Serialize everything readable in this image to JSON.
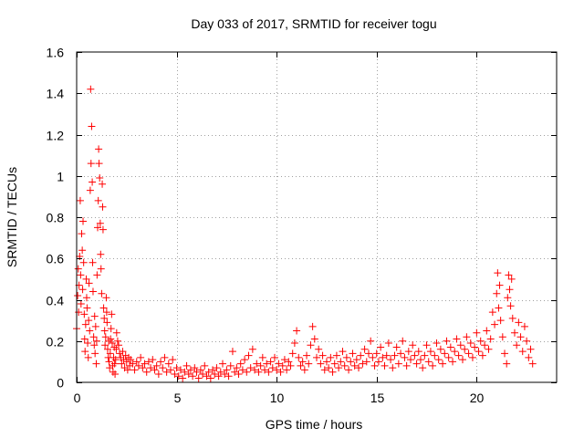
{
  "chart_data": {
    "type": "scatter",
    "title": "Day 033 of 2017, SRMTID for receiver togu",
    "xlabel": "GPS time / hours",
    "ylabel": "SRMTID / TECUs",
    "xlim": [
      0,
      24
    ],
    "ylim": [
      0,
      1.6
    ],
    "xticks": [
      0,
      5,
      10,
      15,
      20
    ],
    "xtick_labels": [
      "0",
      "5",
      "10",
      "15",
      "20"
    ],
    "yticks": [
      0,
      0.2,
      0.4,
      0.6,
      0.8,
      1.0,
      1.2,
      1.4,
      1.6
    ],
    "ytick_labels": [
      "0",
      "0.2",
      "0.4",
      "0.6",
      "0.8",
      "1",
      "1.2",
      "1.4",
      "1.6"
    ],
    "grid": true,
    "marker": "plus",
    "color": "#ff0000",
    "series": [
      {
        "name": "SRMTID",
        "points": [
          [
            0.0,
            0.26
          ],
          [
            0.05,
            0.42
          ],
          [
            0.08,
            0.55
          ],
          [
            0.1,
            0.34
          ],
          [
            0.12,
            0.47
          ],
          [
            0.15,
            0.61
          ],
          [
            0.18,
            0.88
          ],
          [
            0.2,
            0.52
          ],
          [
            0.22,
            0.38
          ],
          [
            0.25,
            0.72
          ],
          [
            0.28,
            0.64
          ],
          [
            0.3,
            0.45
          ],
          [
            0.32,
            0.78
          ],
          [
            0.35,
            0.58
          ],
          [
            0.38,
            0.33
          ],
          [
            0.4,
            0.21
          ],
          [
            0.42,
            0.15
          ],
          [
            0.45,
            0.28
          ],
          [
            0.48,
            0.5
          ],
          [
            0.5,
            0.41
          ],
          [
            0.52,
            0.36
          ],
          [
            0.55,
            0.19
          ],
          [
            0.58,
            0.12
          ],
          [
            0.6,
            0.3
          ],
          [
            0.62,
            0.48
          ],
          [
            0.65,
            0.25
          ],
          [
            0.68,
            0.93
          ],
          [
            0.7,
            1.42
          ],
          [
            0.72,
            1.06
          ],
          [
            0.75,
            1.24
          ],
          [
            0.78,
            0.97
          ],
          [
            0.8,
            0.58
          ],
          [
            0.82,
            0.44
          ],
          [
            0.85,
            0.22
          ],
          [
            0.88,
            0.18
          ],
          [
            0.9,
            0.32
          ],
          [
            0.92,
            0.14
          ],
          [
            0.95,
            0.27
          ],
          [
            0.98,
            0.09
          ],
          [
            1.0,
            0.2
          ],
          [
            1.02,
            0.52
          ],
          [
            1.05,
            0.75
          ],
          [
            1.08,
            0.88
          ],
          [
            1.1,
            1.13
          ],
          [
            1.12,
            1.06
          ],
          [
            1.15,
            0.99
          ],
          [
            1.18,
            0.77
          ],
          [
            1.2,
            0.62
          ],
          [
            1.22,
            0.55
          ],
          [
            1.25,
            0.43
          ],
          [
            1.28,
            0.96
          ],
          [
            1.3,
            0.85
          ],
          [
            1.32,
            0.74
          ],
          [
            1.35,
            0.36
          ],
          [
            1.38,
            0.31
          ],
          [
            1.4,
            0.25
          ],
          [
            1.42,
            0.18
          ],
          [
            1.45,
            0.22
          ],
          [
            1.48,
            0.41
          ],
          [
            1.5,
            0.34
          ],
          [
            1.52,
            0.29
          ],
          [
            1.55,
            0.16
          ],
          [
            1.58,
            0.12
          ],
          [
            1.6,
            0.2
          ],
          [
            1.62,
            0.1
          ],
          [
            1.65,
            0.07
          ],
          [
            1.68,
            0.14
          ],
          [
            1.7,
            0.21
          ],
          [
            1.72,
            0.26
          ],
          [
            1.75,
            0.33
          ],
          [
            1.78,
            0.19
          ],
          [
            1.8,
            0.08
          ],
          [
            1.82,
            0.05
          ],
          [
            1.85,
            0.12
          ],
          [
            1.88,
            0.17
          ],
          [
            1.9,
            0.09
          ],
          [
            1.92,
            0.04
          ],
          [
            1.95,
            0.11
          ],
          [
            1.98,
            0.16
          ],
          [
            2.0,
            0.24
          ],
          [
            2.05,
            0.2
          ],
          [
            2.1,
            0.18
          ],
          [
            2.15,
            0.14
          ],
          [
            2.2,
            0.12
          ],
          [
            2.25,
            0.09
          ],
          [
            2.3,
            0.15
          ],
          [
            2.35,
            0.11
          ],
          [
            2.4,
            0.07
          ],
          [
            2.45,
            0.13
          ],
          [
            2.5,
            0.1
          ],
          [
            2.55,
            0.06
          ],
          [
            2.6,
            0.12
          ],
          [
            2.65,
            0.08
          ],
          [
            2.7,
            0.11
          ],
          [
            2.8,
            0.09
          ],
          [
            2.9,
            0.06
          ],
          [
            3.0,
            0.1
          ],
          [
            3.1,
            0.08
          ],
          [
            3.2,
            0.12
          ],
          [
            3.3,
            0.07
          ],
          [
            3.4,
            0.09
          ],
          [
            3.5,
            0.05
          ],
          [
            3.6,
            0.1
          ],
          [
            3.7,
            0.07
          ],
          [
            3.8,
            0.11
          ],
          [
            3.9,
            0.06
          ],
          [
            4.0,
            0.08
          ],
          [
            4.1,
            0.04
          ],
          [
            4.2,
            0.1
          ],
          [
            4.3,
            0.07
          ],
          [
            4.4,
            0.12
          ],
          [
            4.5,
            0.05
          ],
          [
            4.6,
            0.09
          ],
          [
            4.7,
            0.06
          ],
          [
            4.8,
            0.11
          ],
          [
            4.9,
            0.04
          ],
          [
            5.0,
            0.07
          ],
          [
            5.1,
            0.03
          ],
          [
            5.2,
            0.06
          ],
          [
            5.3,
            0.02
          ],
          [
            5.4,
            0.05
          ],
          [
            5.5,
            0.08
          ],
          [
            5.6,
            0.04
          ],
          [
            5.7,
            0.06
          ],
          [
            5.8,
            0.03
          ],
          [
            5.9,
            0.07
          ],
          [
            6.0,
            0.05
          ],
          [
            6.1,
            0.02
          ],
          [
            6.2,
            0.06
          ],
          [
            6.3,
            0.04
          ],
          [
            6.4,
            0.08
          ],
          [
            6.5,
            0.03
          ],
          [
            6.6,
            0.05
          ],
          [
            6.7,
            0.02
          ],
          [
            6.8,
            0.06
          ],
          [
            6.9,
            0.04
          ],
          [
            7.0,
            0.07
          ],
          [
            7.1,
            0.03
          ],
          [
            7.2,
            0.05
          ],
          [
            7.3,
            0.09
          ],
          [
            7.4,
            0.04
          ],
          [
            7.5,
            0.06
          ],
          [
            7.6,
            0.03
          ],
          [
            7.7,
            0.08
          ],
          [
            7.8,
            0.15
          ],
          [
            7.9,
            0.05
          ],
          [
            8.0,
            0.07
          ],
          [
            8.1,
            0.04
          ],
          [
            8.2,
            0.09
          ],
          [
            8.3,
            0.06
          ],
          [
            8.4,
            0.11
          ],
          [
            8.5,
            0.05
          ],
          [
            8.6,
            0.13
          ],
          [
            8.7,
            0.07
          ],
          [
            8.8,
            0.16
          ],
          [
            8.9,
            0.06
          ],
          [
            9.0,
            0.09
          ],
          [
            9.1,
            0.05
          ],
          [
            9.2,
            0.08
          ],
          [
            9.3,
            0.12
          ],
          [
            9.4,
            0.06
          ],
          [
            9.5,
            0.09
          ],
          [
            9.6,
            0.05
          ],
          [
            9.7,
            0.1
          ],
          [
            9.8,
            0.07
          ],
          [
            9.9,
            0.12
          ],
          [
            10.0,
            0.06
          ],
          [
            10.1,
            0.09
          ],
          [
            10.2,
            0.05
          ],
          [
            10.3,
            0.08
          ],
          [
            10.4,
            0.11
          ],
          [
            10.5,
            0.06
          ],
          [
            10.6,
            0.1
          ],
          [
            10.7,
            0.08
          ],
          [
            10.8,
            0.14
          ],
          [
            10.9,
            0.19
          ],
          [
            11.0,
            0.25
          ],
          [
            11.1,
            0.12
          ],
          [
            11.2,
            0.08
          ],
          [
            11.3,
            0.1
          ],
          [
            11.4,
            0.06
          ],
          [
            11.5,
            0.13
          ],
          [
            11.6,
            0.09
          ],
          [
            11.7,
            0.18
          ],
          [
            11.8,
            0.27
          ],
          [
            11.9,
            0.21
          ],
          [
            12.0,
            0.12
          ],
          [
            12.1,
            0.16
          ],
          [
            12.2,
            0.09
          ],
          [
            12.3,
            0.13
          ],
          [
            12.4,
            0.06
          ],
          [
            12.5,
            0.1
          ],
          [
            12.6,
            0.07
          ],
          [
            12.7,
            0.12
          ],
          [
            12.8,
            0.05
          ],
          [
            12.9,
            0.09
          ],
          [
            13.0,
            0.13
          ],
          [
            13.1,
            0.07
          ],
          [
            13.2,
            0.1
          ],
          [
            13.3,
            0.15
          ],
          [
            13.4,
            0.08
          ],
          [
            13.5,
            0.12
          ],
          [
            13.6,
            0.06
          ],
          [
            13.7,
            0.1
          ],
          [
            13.8,
            0.14
          ],
          [
            13.9,
            0.08
          ],
          [
            14.0,
            0.11
          ],
          [
            14.1,
            0.07
          ],
          [
            14.2,
            0.13
          ],
          [
            14.3,
            0.09
          ],
          [
            14.4,
            0.16
          ],
          [
            14.5,
            0.1
          ],
          [
            14.6,
            0.14
          ],
          [
            14.7,
            0.2
          ],
          [
            14.8,
            0.12
          ],
          [
            14.9,
            0.08
          ],
          [
            15.0,
            0.14
          ],
          [
            15.1,
            0.1
          ],
          [
            15.2,
            0.17
          ],
          [
            15.3,
            0.12
          ],
          [
            15.4,
            0.08
          ],
          [
            15.5,
            0.13
          ],
          [
            15.6,
            0.19
          ],
          [
            15.7,
            0.11
          ],
          [
            15.8,
            0.07
          ],
          [
            15.9,
            0.13
          ],
          [
            16.0,
            0.17
          ],
          [
            16.1,
            0.09
          ],
          [
            16.2,
            0.14
          ],
          [
            16.3,
            0.2
          ],
          [
            16.4,
            0.12
          ],
          [
            16.5,
            0.08
          ],
          [
            16.6,
            0.15
          ],
          [
            16.7,
            0.11
          ],
          [
            16.8,
            0.18
          ],
          [
            16.9,
            0.13
          ],
          [
            17.0,
            0.09
          ],
          [
            17.1,
            0.15
          ],
          [
            17.2,
            0.11
          ],
          [
            17.3,
            0.07
          ],
          [
            17.4,
            0.13
          ],
          [
            17.5,
            0.18
          ],
          [
            17.6,
            0.1
          ],
          [
            17.7,
            0.15
          ],
          [
            17.8,
            0.08
          ],
          [
            17.9,
            0.13
          ],
          [
            18.0,
            0.19
          ],
          [
            18.1,
            0.11
          ],
          [
            18.2,
            0.16
          ],
          [
            18.3,
            0.09
          ],
          [
            18.4,
            0.14
          ],
          [
            18.5,
            0.2
          ],
          [
            18.6,
            0.12
          ],
          [
            18.7,
            0.17
          ],
          [
            18.8,
            0.1
          ],
          [
            18.9,
            0.15
          ],
          [
            19.0,
            0.21
          ],
          [
            19.1,
            0.13
          ],
          [
            19.2,
            0.18
          ],
          [
            19.3,
            0.11
          ],
          [
            19.4,
            0.16
          ],
          [
            19.5,
            0.22
          ],
          [
            19.6,
            0.14
          ],
          [
            19.7,
            0.19
          ],
          [
            19.8,
            0.12
          ],
          [
            19.9,
            0.17
          ],
          [
            20.0,
            0.24
          ],
          [
            20.1,
            0.15
          ],
          [
            20.2,
            0.2
          ],
          [
            20.3,
            0.13
          ],
          [
            20.4,
            0.18
          ],
          [
            20.5,
            0.25
          ],
          [
            20.6,
            0.16
          ],
          [
            20.7,
            0.21
          ],
          [
            20.8,
            0.34
          ],
          [
            20.9,
            0.28
          ],
          [
            21.0,
            0.43
          ],
          [
            21.05,
            0.53
          ],
          [
            21.1,
            0.36
          ],
          [
            21.15,
            0.47
          ],
          [
            21.2,
            0.3
          ],
          [
            21.3,
            0.22
          ],
          [
            21.4,
            0.14
          ],
          [
            21.5,
            0.09
          ],
          [
            21.55,
            0.41
          ],
          [
            21.6,
            0.52
          ],
          [
            21.65,
            0.45
          ],
          [
            21.7,
            0.37
          ],
          [
            21.75,
            0.5
          ],
          [
            21.8,
            0.31
          ],
          [
            21.9,
            0.24
          ],
          [
            22.0,
            0.18
          ],
          [
            22.1,
            0.29
          ],
          [
            22.2,
            0.22
          ],
          [
            22.3,
            0.15
          ],
          [
            22.4,
            0.27
          ],
          [
            22.5,
            0.2
          ],
          [
            22.6,
            0.12
          ],
          [
            22.7,
            0.16
          ],
          [
            22.8,
            0.09
          ]
        ]
      }
    ]
  }
}
